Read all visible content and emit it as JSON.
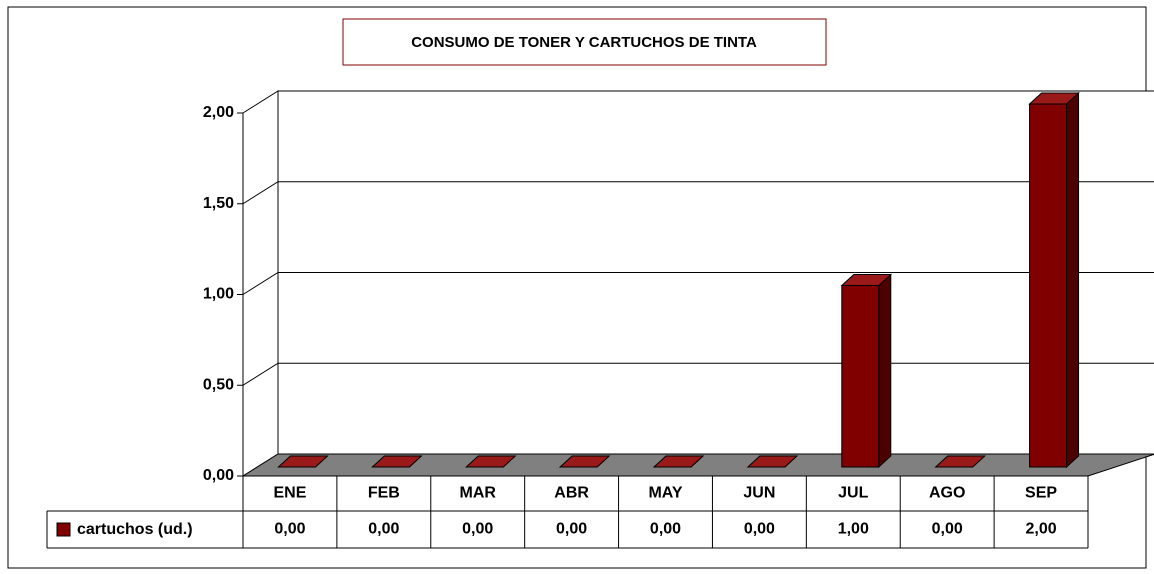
{
  "chart_data": {
    "type": "bar3d",
    "title": "CONSUMO DE TONER Y CARTUCHOS DE TINTA",
    "categories": [
      "ENE",
      "FEB",
      "MAR",
      "ABR",
      "MAY",
      "JUN",
      "JUL",
      "AGO",
      "SEP"
    ],
    "series": [
      {
        "name": "cartuchos (ud.)",
        "color": "#800000",
        "values": [
          0,
          0,
          0,
          0,
          0,
          0,
          1,
          0,
          2
        ],
        "value_labels": [
          "0,00",
          "0,00",
          "0,00",
          "0,00",
          "0,00",
          "0,00",
          "1,00",
          "0,00",
          "2,00"
        ]
      }
    ],
    "ylim": [
      0,
      2
    ],
    "yticks": [
      {
        "value": 0,
        "label": "0,00"
      },
      {
        "value": 0.5,
        "label": "0,50"
      },
      {
        "value": 1,
        "label": "1,00"
      },
      {
        "value": 1.5,
        "label": "1,50"
      },
      {
        "value": 2,
        "label": "2,00"
      }
    ],
    "grid": true
  }
}
